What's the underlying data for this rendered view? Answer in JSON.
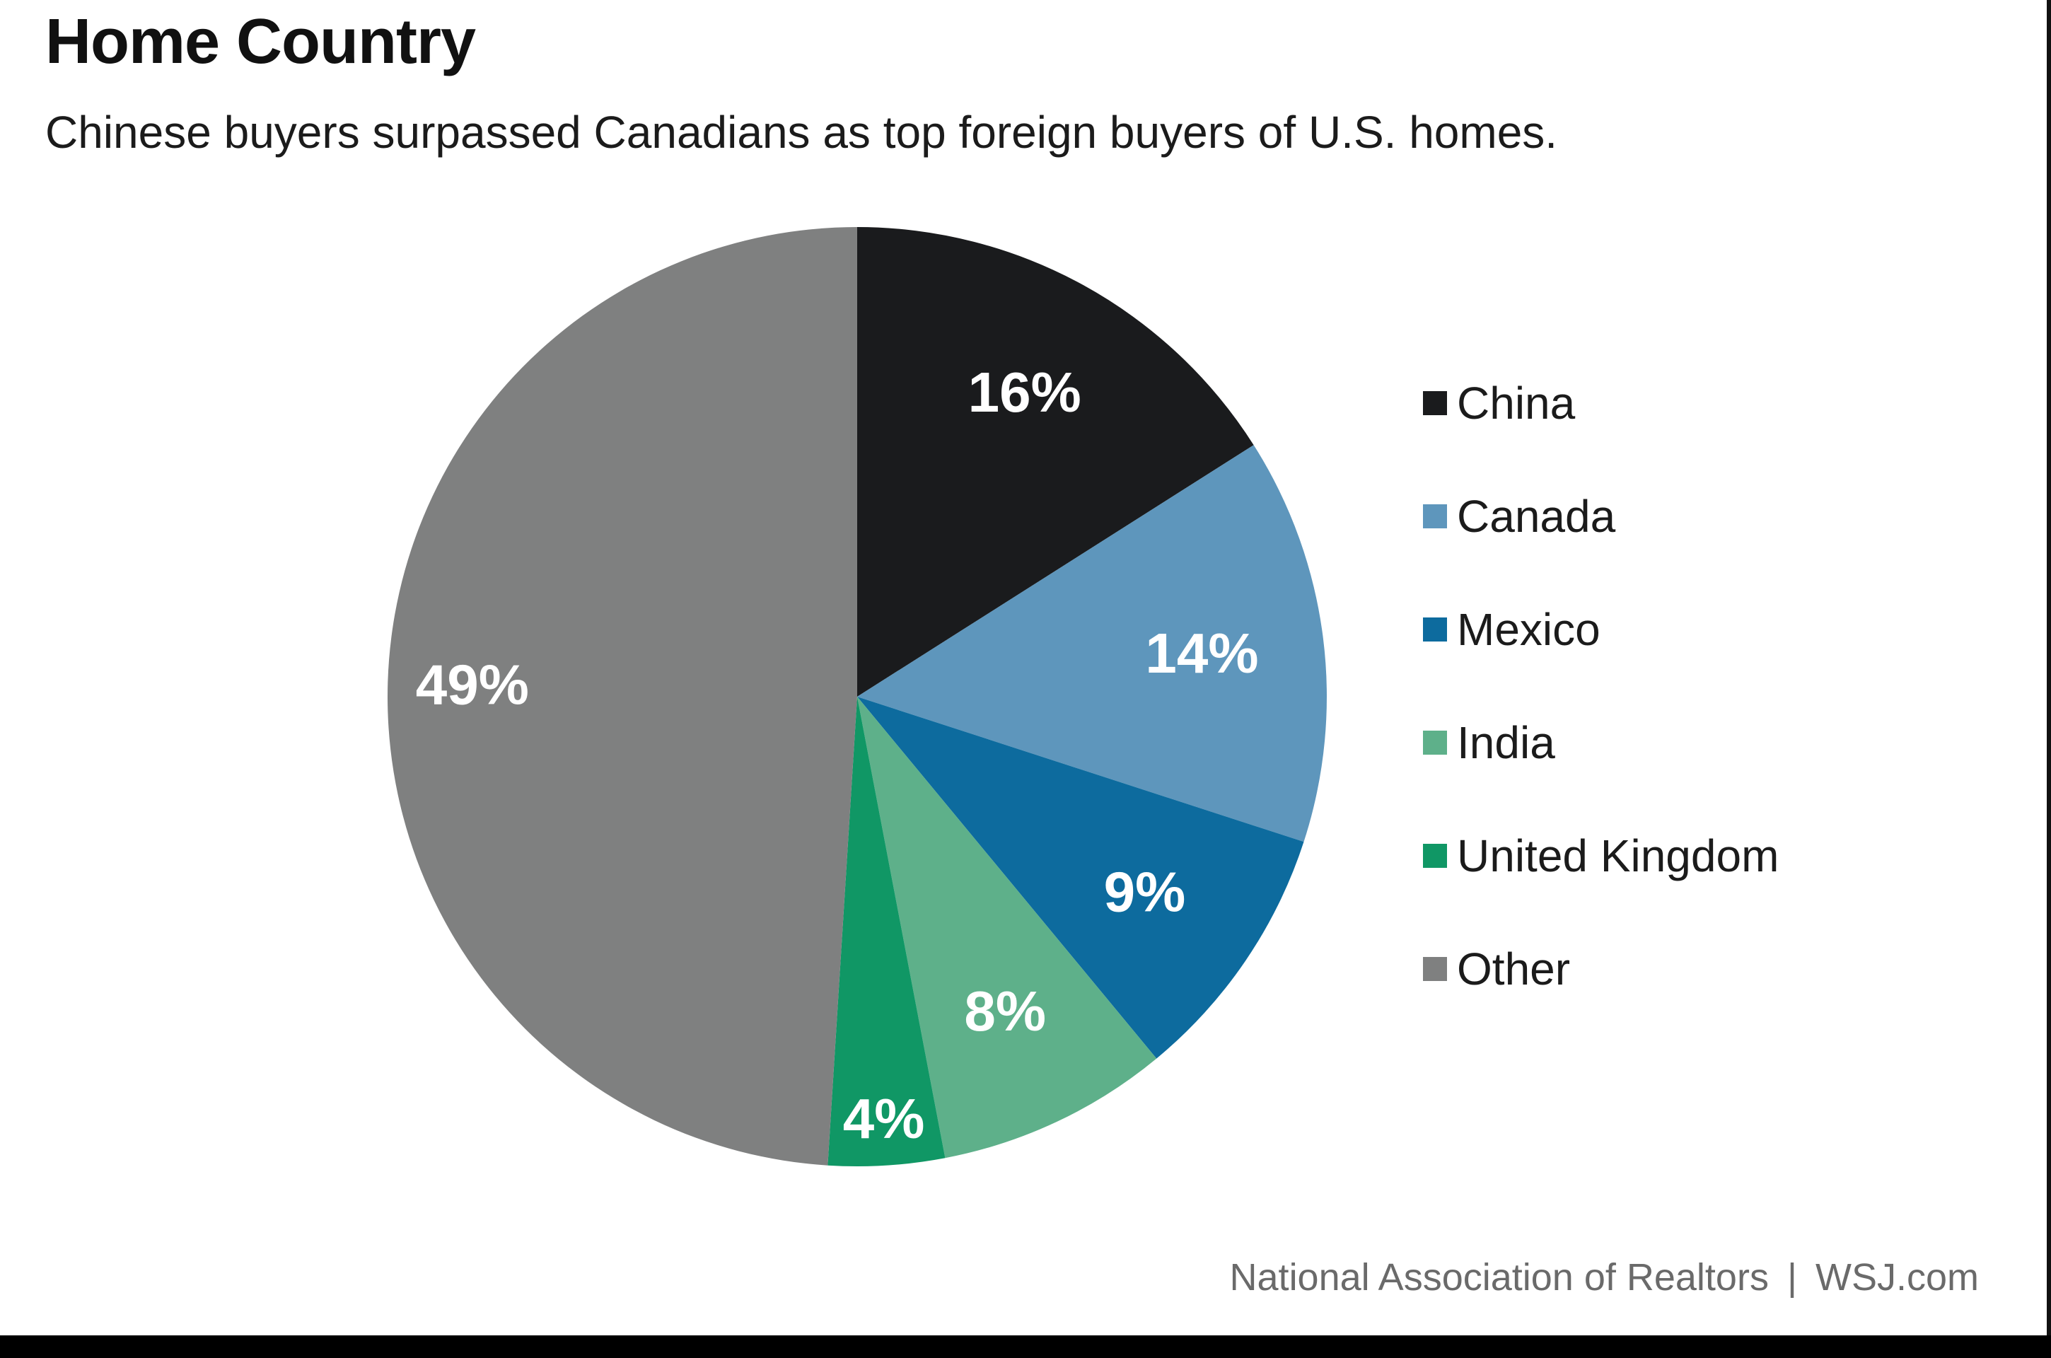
{
  "chart_data": {
    "type": "pie",
    "title": "Home Country",
    "subtitle": "Chinese buyers surpassed Canadians as top foreign buyers of U.S. homes.",
    "start_angle_deg": 0,
    "direction": "clockwise",
    "slices": [
      {
        "label": "China",
        "value": 16,
        "display": "16%",
        "color": "#1a1b1d"
      },
      {
        "label": "Canada",
        "value": 14,
        "display": "14%",
        "color": "#5e96bc"
      },
      {
        "label": "Mexico",
        "value": 9,
        "display": "9%",
        "color": "#0d6b9e"
      },
      {
        "label": "India",
        "value": 8,
        "display": "8%",
        "color": "#5eb08a"
      },
      {
        "label": "United Kingdom",
        "value": 4,
        "display": "4%",
        "color": "#109765"
      },
      {
        "label": "Other",
        "value": 49,
        "display": "49%",
        "color": "#7f8080"
      }
    ],
    "legend_position": "right",
    "source": [
      "National Association of Realtors",
      "WSJ.com"
    ],
    "source_separator": "|"
  }
}
